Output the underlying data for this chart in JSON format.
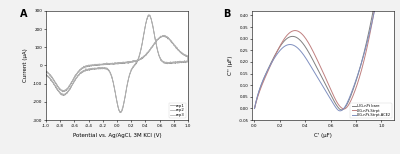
{
  "panel_A": {
    "title": "A",
    "xlabel": "Potential vs. Ag/AgCl, 3M KCl (V)",
    "ylabel": "Current (μA)",
    "xlim": [
      -1.0,
      1.0
    ],
    "ylim": [
      -300,
      300
    ],
    "xticks": [
      -1.0,
      -0.8,
      -0.6,
      -0.4,
      -0.2,
      0.0,
      0.2,
      0.4,
      0.6,
      0.8,
      1.0
    ],
    "yticks": [
      -300,
      -200,
      -100,
      0,
      100,
      200,
      300
    ],
    "line_color": "#909090",
    "legend_labels": [
      "rep1",
      "rep2",
      "rep3"
    ]
  },
  "panel_B": {
    "title": "B",
    "xlabel": "C' (μF)",
    "ylabel": "C'' (μF)",
    "xlim": [
      -0.02,
      1.1
    ],
    "ylim": [
      -0.05,
      0.42
    ],
    "xticks": [
      0.0,
      0.2,
      0.4,
      0.6,
      0.8,
      1.0
    ],
    "yticks": [
      -0.05,
      0.0,
      0.05,
      0.1,
      0.15,
      0.2,
      0.25,
      0.3,
      0.35,
      0.4
    ],
    "legend_labels": [
      "LIG-nPt bare",
      "LIG-nPt-Strpt",
      "LIG-nPt-Strpt-ACE2"
    ],
    "line_colors": [
      "#808080",
      "#c08080",
      "#8090c0"
    ]
  },
  "background_color": "#f2f2f2"
}
